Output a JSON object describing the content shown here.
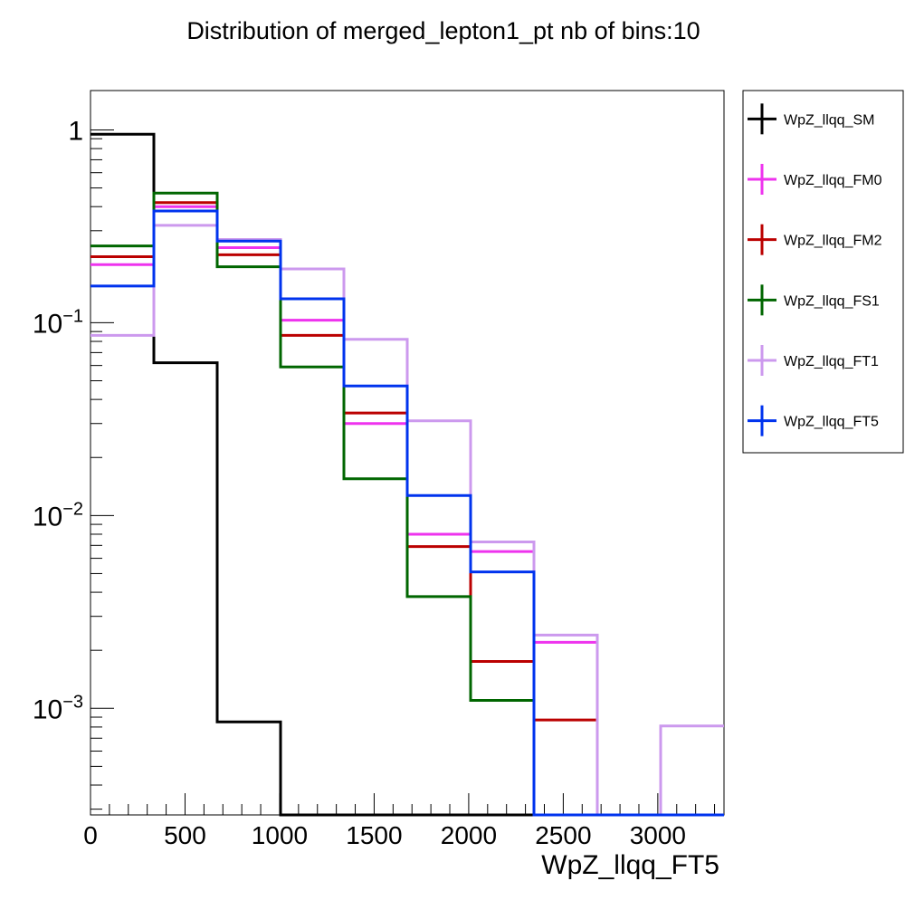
{
  "chart_data": {
    "type": "line",
    "title": "Distribution of merged_lepton1_pt nb of bins:10",
    "xlabel": "WpZ_llqq_FT5",
    "ylabel": "",
    "xlim": [
      0,
      3350
    ],
    "ylim": [
      0.00028,
      1.6
    ],
    "yscale": "log",
    "grid": false,
    "legend": "outside-right",
    "bin_edges": [
      0,
      335,
      670,
      1005,
      1340,
      1675,
      2010,
      2345,
      2680,
      3015,
      3350
    ],
    "x_ticks": [
      0,
      500,
      1000,
      1500,
      2000,
      2500,
      3000
    ],
    "x_tick_labels": [
      "0",
      "500",
      "1000",
      "1500",
      "2000",
      "2500",
      "3000"
    ],
    "y_ticks": [
      {
        "value": 1,
        "base": "1",
        "exp": ""
      },
      {
        "value": 0.1,
        "base": "10",
        "exp": "−1"
      },
      {
        "value": 0.01,
        "base": "10",
        "exp": "−2"
      },
      {
        "value": 0.001,
        "base": "10",
        "exp": "−3"
      }
    ],
    "series": [
      {
        "name": "WpZ_llqq_SM",
        "color": "#000000",
        "values": [
          0.95,
          0.062,
          0.00085,
          0,
          0,
          0,
          0,
          0,
          0,
          0
        ]
      },
      {
        "name": "WpZ_llqq_FM0",
        "color": "#ee33ee",
        "values": [
          0.2,
          0.4,
          0.245,
          0.103,
          0.03,
          0.008,
          0.0065,
          0.0022,
          0,
          0
        ]
      },
      {
        "name": "WpZ_llqq_FM2",
        "color": "#bb0000",
        "values": [
          0.22,
          0.42,
          0.225,
          0.086,
          0.034,
          0.0069,
          0.00175,
          0.00087,
          0,
          0
        ]
      },
      {
        "name": "WpZ_llqq_FS1",
        "color": "#006600",
        "values": [
          0.25,
          0.47,
          0.195,
          0.059,
          0.0155,
          0.0038,
          0.0011,
          0,
          0,
          0
        ]
      },
      {
        "name": "WpZ_llqq_FT1",
        "color": "#cc99ee",
        "values": [
          0.086,
          0.32,
          0.27,
          0.19,
          0.082,
          0.031,
          0.0073,
          0.0024,
          0,
          0.00081
        ]
      },
      {
        "name": "WpZ_llqq_FT5",
        "color": "#0033ee",
        "values": [
          0.155,
          0.38,
          0.265,
          0.133,
          0.047,
          0.0127,
          0.0051,
          0,
          0,
          0
        ]
      }
    ]
  }
}
